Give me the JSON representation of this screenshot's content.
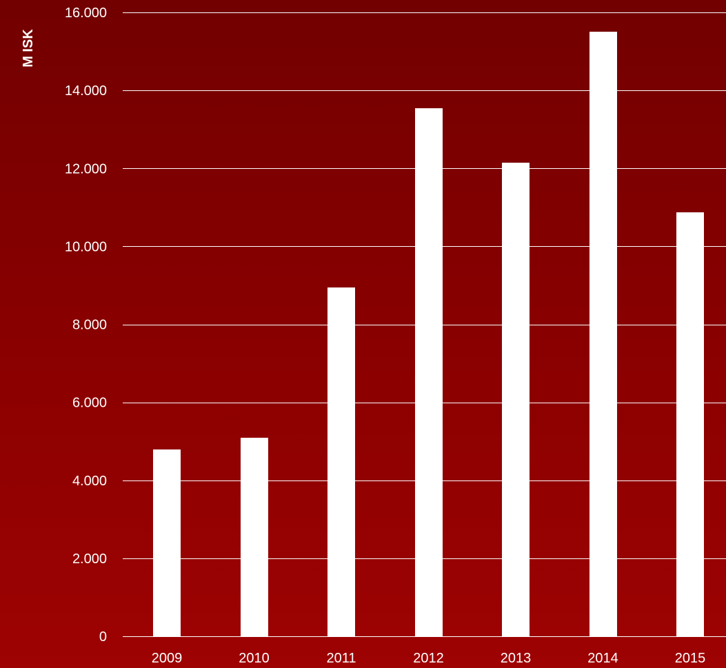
{
  "chart_data": {
    "type": "bar",
    "title": "",
    "xlabel": "",
    "ylabel": "M ISK",
    "categories": [
      "2009",
      "2010",
      "2011",
      "2012",
      "2013",
      "2014",
      "2015"
    ],
    "values": [
      4800,
      5100,
      8950,
      13550,
      12150,
      15500,
      10870
    ],
    "ylim": [
      0,
      16000
    ],
    "yticks": [
      0,
      2000,
      4000,
      6000,
      8000,
      10000,
      12000,
      14000,
      16000
    ],
    "ytick_labels": [
      "0",
      "2.000",
      "4.000",
      "6.000",
      "8.000",
      "10.000",
      "12.000",
      "14.000",
      "16.000"
    ],
    "grid": true,
    "legend": "none",
    "colors": {
      "bar": "#ffffff",
      "gridline": "#ffffff",
      "text": "#ffffff",
      "background_top": "#720000",
      "background_bottom": "#9e0202"
    }
  }
}
